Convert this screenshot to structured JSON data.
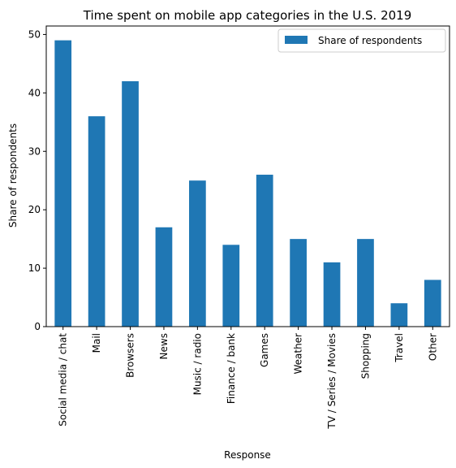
{
  "chart_data": {
    "type": "bar",
    "title": "Time spent on mobile app categories in the U.S. 2019",
    "xlabel": "Response",
    "ylabel": "Share of respondents",
    "categories": [
      "Social media / chat",
      "Mail",
      "Browsers",
      "News",
      "Music / radio",
      "Finance / bank",
      "Games",
      "Weather",
      "TV / Series / Movies",
      "Shopping",
      "Travel",
      "Other"
    ],
    "series": [
      {
        "name": "Share of respondents",
        "values": [
          49,
          36,
          42,
          17,
          25,
          14,
          26,
          15,
          11,
          15,
          4,
          8
        ],
        "color": "#1f77b4"
      }
    ],
    "ylim": [
      0,
      51.45
    ],
    "yticks": [
      0,
      10,
      20,
      30,
      40,
      50
    ],
    "grid": false,
    "legend": "top-right"
  }
}
